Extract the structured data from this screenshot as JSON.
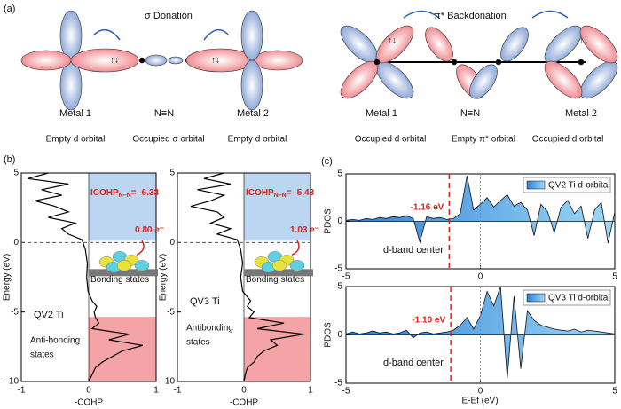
{
  "panel_a": {
    "label": "(a)",
    "sigma": {
      "title": "σ Donation",
      "names": [
        "Metal 1",
        "N≡N",
        "Metal 2"
      ],
      "orbitals": [
        "Empty d orbital",
        "Occupied  σ orbital",
        "Empty d orbital"
      ]
    },
    "pi": {
      "title": "π* Backdonation",
      "names": [
        "Metal 1",
        "N≡N",
        "Metal 2"
      ],
      "orbitals": [
        "Occupied d orbital",
        "Empty π* orbital",
        "Occupied d orbital"
      ]
    }
  },
  "panel_b": {
    "label": "(b)",
    "charts": [
      {
        "type": "line",
        "ylabel": "Energy (eV)",
        "xlabel": "-COHP",
        "xlim": [
          -1,
          1
        ],
        "xticks": [
          -1,
          0,
          1
        ],
        "ylim": [
          -10,
          5
        ],
        "yticks": [
          -10,
          -5,
          0,
          5
        ],
        "icohp": [
          "ICOHP",
          "N–N",
          "= -6.33"
        ],
        "charge": "0.80 e⁻",
        "system": "QV2 Ti",
        "bonding": "Bonding states",
        "antibonding": [
          "Anti-bonding",
          "states"
        ],
        "energy": [
          5,
          4.6,
          4.2,
          3.8,
          3.4,
          3.0,
          2.6,
          2.2,
          1.8,
          1.4,
          1.0,
          0.6,
          0.2,
          -0.5,
          -1.5,
          -2.5,
          -3.5,
          -4.2,
          -4.6,
          -5.0,
          -5.4,
          -5.8,
          -6.2,
          -6.6,
          -7.0,
          -7.4,
          -7.8,
          -8.2,
          -8.6,
          -9.0,
          -9.5,
          -10
        ],
        "cohp": [
          -0.6,
          -0.9,
          -0.3,
          -0.7,
          -0.4,
          -0.8,
          -0.5,
          -0.3,
          -0.6,
          -0.2,
          -0.4,
          -0.3,
          -0.1,
          -0.05,
          -0.02,
          -0.03,
          -0.01,
          0.05,
          0.12,
          0.08,
          0.1,
          0.15,
          0.05,
          0.6,
          0.3,
          0.8,
          0.5,
          0.35,
          0.2,
          0.1,
          0.05,
          0
        ]
      },
      {
        "type": "line",
        "ylabel": "Energy (eV)",
        "xlabel": "-COHP",
        "xlim": [
          -1,
          1
        ],
        "xticks": [
          -1,
          0,
          1
        ],
        "ylim": [
          -10,
          5
        ],
        "yticks": [
          -10,
          -5,
          0,
          5
        ],
        "icohp": [
          "ICOHP",
          "N–N",
          "= -5.43"
        ],
        "charge": "1.03 e⁻",
        "system": "QV3 Ti",
        "bonding": "Bonding  states",
        "antibonding": [
          "Antibonding",
          "states"
        ],
        "energy": [
          5,
          4.6,
          4.2,
          3.8,
          3.4,
          3.0,
          2.6,
          2.2,
          1.8,
          1.4,
          1.0,
          0.6,
          0.2,
          -0.5,
          -1.5,
          -2.5,
          -3.5,
          -4.2,
          -4.6,
          -5.0,
          -5.4,
          -5.8,
          -6.2,
          -6.6,
          -7.0,
          -7.4,
          -7.8,
          -8.2,
          -8.6,
          -9.0,
          -9.5,
          -10
        ],
        "cohp": [
          -0.3,
          -0.6,
          -0.2,
          -0.7,
          -0.3,
          -0.5,
          -0.8,
          -0.4,
          -0.3,
          -0.5,
          -0.2,
          -0.4,
          -0.1,
          -0.05,
          -0.02,
          -0.05,
          -0.02,
          0.1,
          0.05,
          0.15,
          0.08,
          0.6,
          0.2,
          0.9,
          0.4,
          0.5,
          0.3,
          0.2,
          0.15,
          0.05,
          0.02,
          0
        ]
      }
    ]
  },
  "panel_c": {
    "label": "(c)",
    "ylabel": "PDOS",
    "xlabel": "E-Ef (eV)",
    "charts": [
      {
        "type": "area",
        "legend": "QV2 Ti  d-orbital",
        "d_band_center": -1.16,
        "d_band_label": "-1.16 eV",
        "center_text": "d-band center",
        "xlim": [
          -5,
          5
        ],
        "xticks": [
          -5,
          0,
          5
        ],
        "ylim": [
          -5,
          5
        ],
        "yticks": [
          -5,
          0,
          5
        ],
        "x": [
          -5,
          -4.75,
          -4.5,
          -4.25,
          -4,
          -3.75,
          -3.5,
          -3.25,
          -3,
          -2.75,
          -2.5,
          -2.25,
          -2,
          -1.75,
          -1.5,
          -1.25,
          -1,
          -0.75,
          -0.5,
          -0.25,
          0,
          0.25,
          0.5,
          0.75,
          1,
          1.25,
          1.5,
          1.75,
          2,
          2.25,
          2.5,
          2.75,
          3,
          3.25,
          3.5,
          3.75,
          4,
          4.25,
          4.5,
          4.75,
          5
        ],
        "values": [
          0.1,
          0.2,
          0.1,
          0.3,
          0.2,
          0.4,
          0.3,
          0.5,
          0.4,
          0.6,
          0.3,
          -2.2,
          0.5,
          0.3,
          0.4,
          0.2,
          0.3,
          0.8,
          4.8,
          1.2,
          1.8,
          2.5,
          1.5,
          2.2,
          2.8,
          1.6,
          2.0,
          1.2,
          -1.5,
          1.8,
          1.0,
          -1.2,
          1.5,
          2.2,
          0.8,
          1.6,
          -1.8,
          1.2,
          2.0,
          -2.3,
          1.0
        ]
      },
      {
        "type": "area",
        "legend": "QV3 Ti d-orbital",
        "d_band_center": -1.1,
        "d_band_label": "-1.10 eV",
        "center_text": "d-band center",
        "xlim": [
          -5,
          5
        ],
        "xticks": [
          -5,
          0,
          5
        ],
        "ylim": [
          -5,
          5
        ],
        "yticks": [
          -5,
          0,
          5
        ],
        "x": [
          -5,
          -4.75,
          -4.5,
          -4.25,
          -4,
          -3.75,
          -3.5,
          -3.25,
          -3,
          -2.75,
          -2.5,
          -2.25,
          -2,
          -1.75,
          -1.5,
          -1.25,
          -1,
          -0.75,
          -0.5,
          -0.25,
          0,
          0.25,
          0.5,
          0.75,
          1,
          1.25,
          1.5,
          1.75,
          2,
          2.25,
          2.5,
          2.75,
          3,
          3.25,
          3.5,
          3.75,
          4,
          4.25,
          4.5,
          4.75,
          5
        ],
        "values": [
          0.1,
          0.3,
          0.1,
          0.2,
          0.4,
          0.2,
          0.3,
          0.1,
          0.2,
          0.5,
          -0.3,
          0.2,
          0.3,
          0.1,
          0.2,
          0.3,
          0.5,
          1.0,
          1.8,
          0.6,
          2.0,
          4.5,
          3.0,
          5.0,
          -4.5,
          4.0,
          -3.5,
          2.5,
          1.5,
          1.0,
          0.8,
          0.6,
          0.5,
          0.4,
          0.6,
          0.3,
          0.5,
          0.4,
          0.3,
          0.2,
          0.1
        ]
      }
    ]
  }
}
